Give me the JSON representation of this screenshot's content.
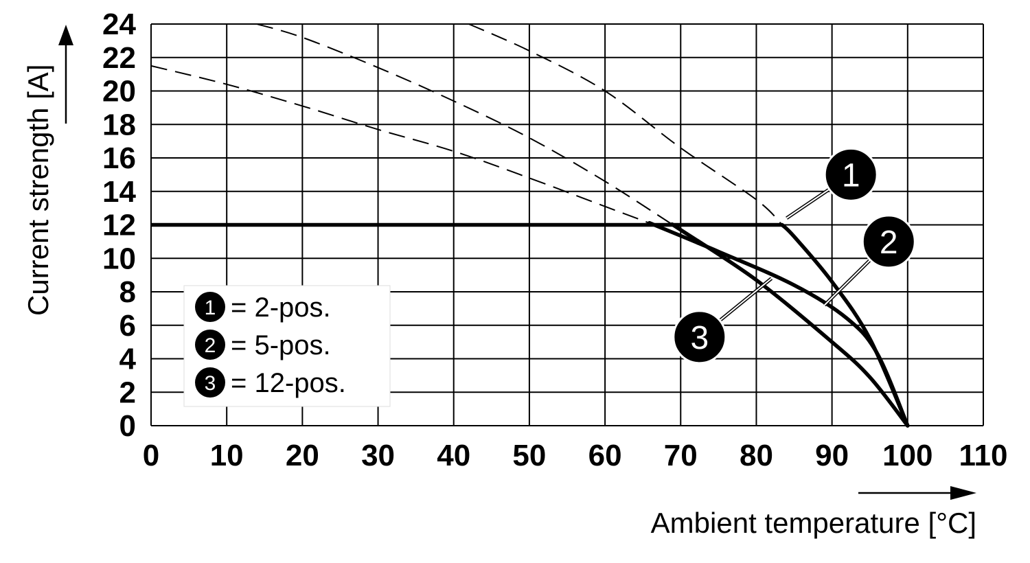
{
  "chart_data": {
    "type": "line",
    "xlabel": "Ambient temperature [°C]",
    "ylabel": "Current strength [A]",
    "xlim": [
      0,
      110
    ],
    "ylim": [
      0,
      24
    ],
    "xticks": [
      0,
      10,
      20,
      30,
      40,
      50,
      60,
      70,
      80,
      90,
      100,
      110
    ],
    "yticks": [
      0,
      2,
      4,
      6,
      8,
      10,
      12,
      14,
      16,
      18,
      20,
      22,
      24
    ],
    "xtick_labels": [
      "0",
      "10",
      "20",
      "30",
      "40",
      "50",
      "60",
      "70",
      "80",
      "90",
      "100",
      "110"
    ],
    "ytick_labels": [
      "0",
      "2",
      "4",
      "6",
      "8",
      "10",
      "12",
      "14",
      "16",
      "18",
      "20",
      "22",
      "24"
    ],
    "grid": true,
    "legend_position": "bottom-left",
    "legend": [
      {
        "marker": "1",
        "text": "= 2-pos."
      },
      {
        "marker": "2",
        "text": "= 5-pos."
      },
      {
        "marker": "3",
        "text": "= 12-pos."
      }
    ],
    "rated_current": 12,
    "series": [
      {
        "marker": "1",
        "derating_curve": [
          [
            14,
            24
          ],
          [
            20,
            23.2
          ],
          [
            30,
            21.4
          ],
          [
            40,
            19.4
          ],
          [
            50,
            17.2
          ],
          [
            60,
            14.6
          ],
          [
            70,
            11.7
          ],
          [
            80,
            8.7
          ],
          [
            90,
            5.0
          ],
          [
            95,
            2.9
          ],
          [
            100,
            0
          ]
        ],
        "label_anchor": [
          84,
          12.4
        ]
      },
      {
        "marker": "2",
        "derating_curve": [
          [
            42,
            24
          ],
          [
            50,
            22.4
          ],
          [
            60,
            20.0
          ],
          [
            70,
            16.6
          ],
          [
            80,
            13.5
          ],
          [
            85,
            11.3
          ],
          [
            90,
            8.6
          ],
          [
            95,
            5.2
          ],
          [
            100,
            0
          ]
        ],
        "label_anchor": [
          89,
          7.2
        ]
      },
      {
        "marker": "3",
        "derating_curve": [
          [
            0,
            21.5
          ],
          [
            10,
            20.4
          ],
          [
            20,
            19.1
          ],
          [
            30,
            17.7
          ],
          [
            40,
            16.4
          ],
          [
            50,
            14.8
          ],
          [
            60,
            13.1
          ],
          [
            66.5,
            12
          ],
          [
            75,
            10.4
          ],
          [
            85,
            8.4
          ],
          [
            92,
            6.4
          ],
          [
            96,
            4.3
          ],
          [
            100,
            0
          ]
        ],
        "label_anchor": [
          82,
          8.8
        ]
      }
    ],
    "curve_labels": [
      {
        "marker": "1",
        "at": [
          92.5,
          15
        ],
        "size": "large"
      },
      {
        "marker": "2",
        "at": [
          97.5,
          11
        ],
        "size": "large"
      },
      {
        "marker": "3",
        "at": [
          72.5,
          5.3
        ],
        "size": "large"
      }
    ],
    "colors": {
      "curve": "#000000",
      "grid": "#000000",
      "background": "#ffffff"
    }
  }
}
